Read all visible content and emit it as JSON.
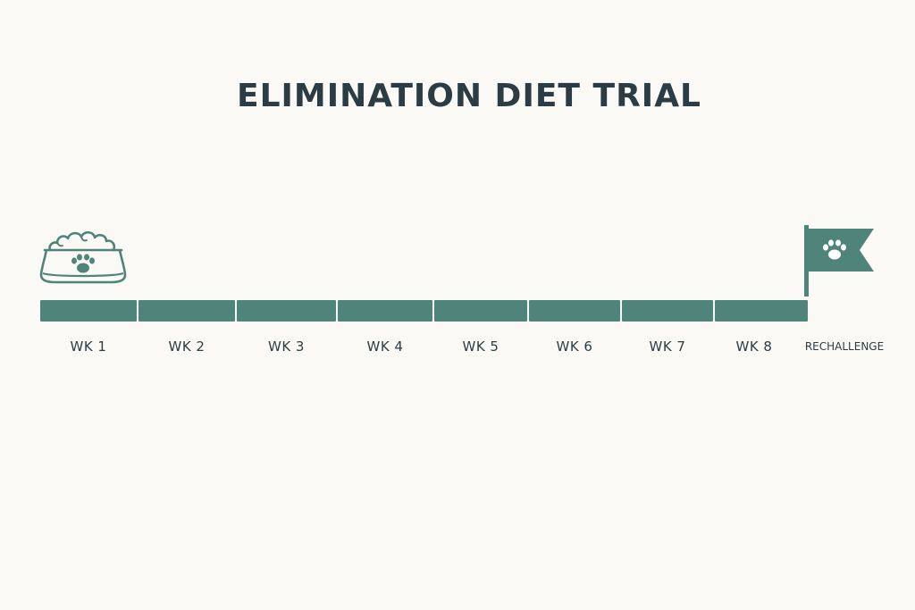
{
  "title": "ELIMINATION DIET TRIAL",
  "icons": {
    "start": "food-bowl-paw-icon",
    "end": "paw-flag-icon"
  },
  "colors": {
    "background": "#faf9f5",
    "bar": "#4f847b",
    "text": "#2b3c44"
  },
  "stages": [
    {
      "label": "WK 1"
    },
    {
      "label": "WK 2"
    },
    {
      "label": "WK 3"
    },
    {
      "label": "WK 4"
    },
    {
      "label": "WK 5"
    },
    {
      "label": "WK 6"
    },
    {
      "label": "WK 7"
    },
    {
      "label": "WK 8"
    },
    {
      "label": "RECHALLENGE"
    }
  ]
}
